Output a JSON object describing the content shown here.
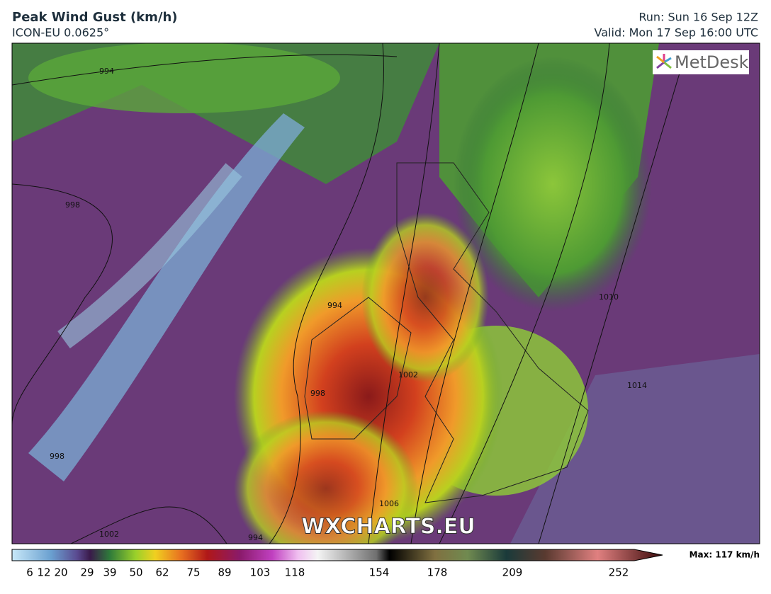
{
  "header": {
    "title": "Peak Wind Gust (km/h)",
    "subtitle": "ICON-EU 0.0625°",
    "run": "Run: Sun 16 Sep 12Z",
    "valid": "Valid: Mon 17 Sep 16:00 UTC"
  },
  "logo": "MetDesk",
  "watermark": "WXCHARTS.EU",
  "isobar_labels": [
    "994",
    "998",
    "994",
    "1010",
    "1014",
    "998",
    "1002",
    "994",
    "1006",
    "1002",
    "998"
  ],
  "colorbar": {
    "ticks": [
      6,
      12,
      20,
      29,
      39,
      50,
      62,
      75,
      89,
      103,
      118,
      154,
      178,
      209,
      252
    ],
    "max_label": "Max: 117 km/h"
  }
}
